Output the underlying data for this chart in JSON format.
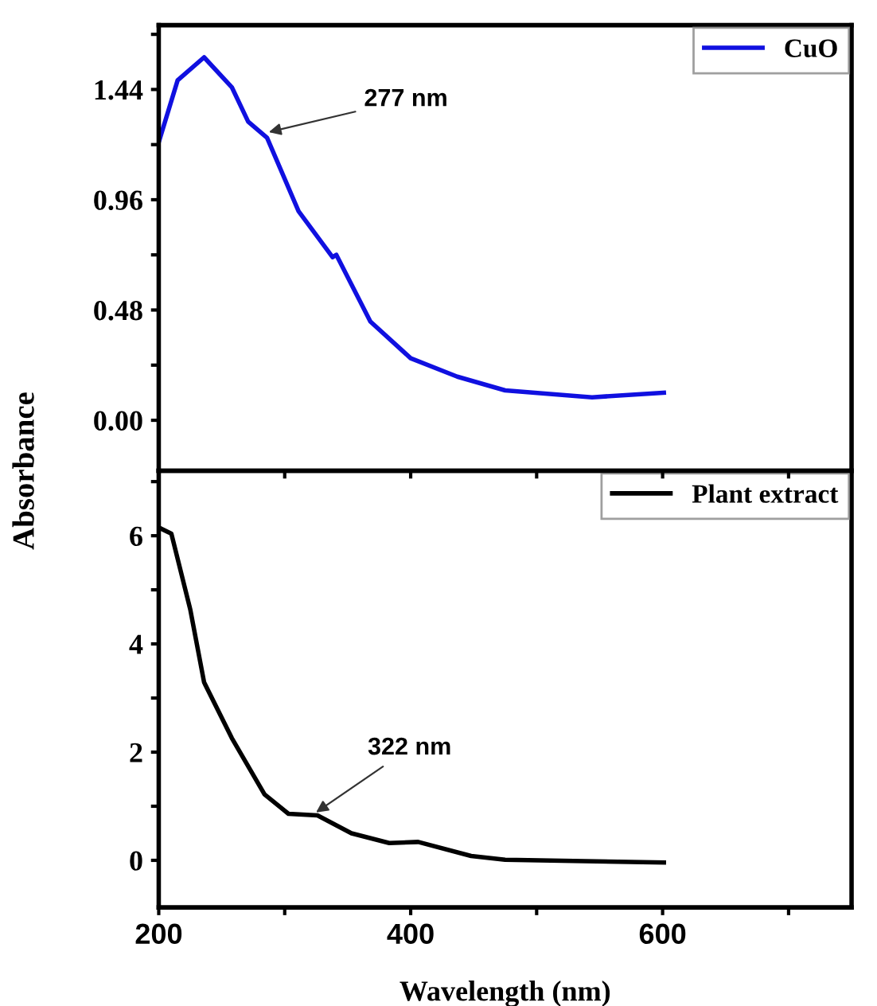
{
  "chart_data": [
    {
      "type": "line",
      "ylabel": "Absorbance",
      "x": [
        200,
        215,
        236,
        258,
        271,
        286,
        311,
        338,
        341,
        368,
        400,
        437,
        475,
        544,
        601
      ],
      "series": [
        {
          "name": "CuO",
          "color": "#1010e0",
          "values": [
            1.21,
            1.48,
            1.58,
            1.45,
            1.3,
            1.23,
            0.91,
            0.71,
            0.72,
            0.43,
            0.27,
            0.19,
            0.13,
            0.1,
            0.12
          ]
        }
      ],
      "xlim": [
        200,
        750
      ],
      "xticks": [
        {
          "value": 200,
          "label": null
        },
        {
          "value": 300,
          "label": null
        },
        {
          "value": 400,
          "label": null
        },
        {
          "value": 500,
          "label": null
        },
        {
          "value": 600,
          "label": null
        },
        {
          "value": 700,
          "label": null
        }
      ],
      "ylim": [
        -0.22,
        1.72
      ],
      "yticks": [
        {
          "value": 0,
          "label": "0.00"
        },
        {
          "value": 0.24,
          "label": null
        },
        {
          "value": 0.48,
          "label": "0.48"
        },
        {
          "value": 0.72,
          "label": null
        },
        {
          "value": 0.96,
          "label": "0.96"
        },
        {
          "value": 1.2,
          "label": null
        },
        {
          "value": 1.44,
          "label": "1.44"
        },
        {
          "value": 1.68,
          "label": null
        }
      ],
      "tick_labels": "y",
      "legend": "top right",
      "grid": false,
      "marker": "none",
      "line_style": "solid",
      "annotations": [
        {
          "text": "277 nm",
          "x": 284,
          "y": 1.25
        }
      ]
    },
    {
      "type": "line",
      "xlabel": "Wavelength (nm)",
      "x": [
        201,
        210,
        225,
        236,
        258,
        284,
        303,
        326,
        353,
        383,
        406,
        448,
        475,
        601
      ],
      "series": [
        {
          "name": "Plant extract",
          "color": "#000000",
          "values": [
            6.14,
            6.04,
            4.64,
            3.29,
            2.26,
            1.22,
            0.86,
            0.83,
            0.5,
            0.32,
            0.34,
            0.08,
            0.01,
            -0.04
          ]
        }
      ],
      "xlim": [
        200,
        750
      ],
      "xticks": [
        200,
        {
          "value": 300,
          "label": null
        },
        400,
        {
          "value": 500,
          "label": null
        },
        600,
        {
          "value": 700,
          "label": null
        }
      ],
      "ylim": [
        -0.87,
        7.2
      ],
      "yticks": [
        0,
        {
          "value": 1,
          "label": null
        },
        2,
        {
          "value": 3,
          "label": null
        },
        4,
        {
          "value": 5,
          "label": null
        },
        6,
        {
          "value": 7,
          "label": null
        }
      ],
      "legend": "top right",
      "grid": false,
      "marker": "none",
      "line_style": "solid",
      "annotations": [
        {
          "text": "322 nm",
          "x": 322,
          "y": 0.84
        }
      ]
    }
  ]
}
